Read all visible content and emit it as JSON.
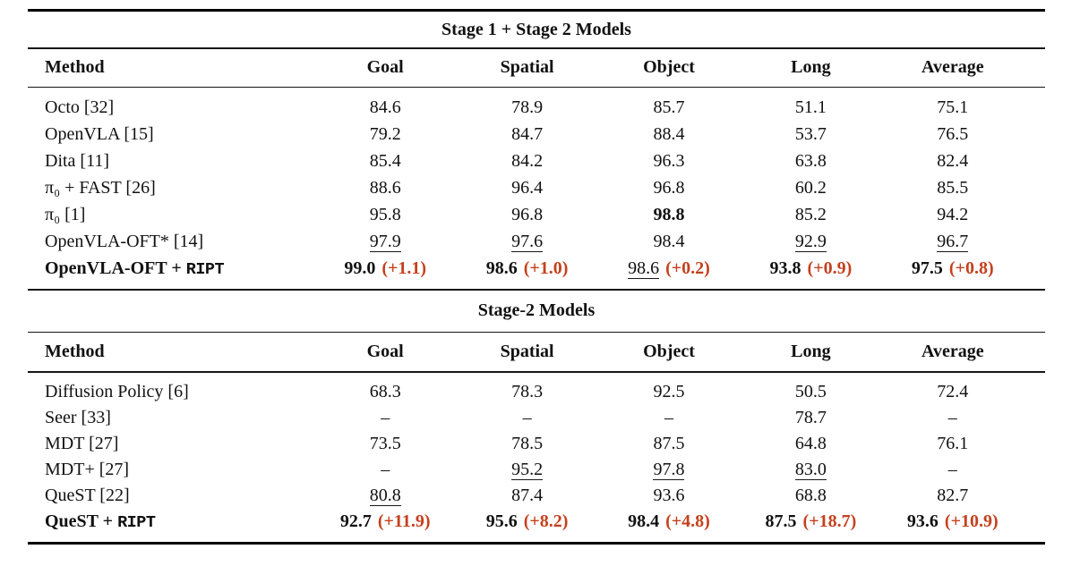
{
  "colors": {
    "accent_red": "#c5401d",
    "rule_color": "#161616"
  },
  "tables": [
    {
      "title": "Stage 1 + Stage 2 Models",
      "columns": [
        "Method",
        "Goal",
        "Spatial",
        "Object",
        "Long",
        "Average"
      ],
      "rows": [
        {
          "method": {
            "text": "Octo [32]"
          },
          "cells": [
            {
              "v": "84.6"
            },
            {
              "v": "78.9"
            },
            {
              "v": "85.7"
            },
            {
              "v": "51.1"
            },
            {
              "v": "75.1"
            }
          ]
        },
        {
          "method": {
            "text": "OpenVLA [15]"
          },
          "cells": [
            {
              "v": "79.2"
            },
            {
              "v": "84.7"
            },
            {
              "v": "88.4"
            },
            {
              "v": "53.7"
            },
            {
              "v": "76.5"
            }
          ]
        },
        {
          "method": {
            "text": "Dita [11]"
          },
          "cells": [
            {
              "v": "85.4"
            },
            {
              "v": "84.2"
            },
            {
              "v": "96.3"
            },
            {
              "v": "63.8"
            },
            {
              "v": "82.4"
            }
          ]
        },
        {
          "method": {
            "text": "π₀ + FAST [26]"
          },
          "cells": [
            {
              "v": "88.6"
            },
            {
              "v": "96.4"
            },
            {
              "v": "96.8"
            },
            {
              "v": "60.2"
            },
            {
              "v": "85.5"
            }
          ]
        },
        {
          "method": {
            "text": "π₀ [1]"
          },
          "cells": [
            {
              "v": "95.8"
            },
            {
              "v": "96.8"
            },
            {
              "v": "98.8",
              "bold": true
            },
            {
              "v": "85.2"
            },
            {
              "v": "94.2"
            }
          ]
        },
        {
          "method": {
            "text": "OpenVLA-OFT* [14]"
          },
          "cells": [
            {
              "v": "97.9",
              "underline": true
            },
            {
              "v": "97.6",
              "underline": true
            },
            {
              "v": "98.4"
            },
            {
              "v": "92.9",
              "underline": true
            },
            {
              "v": "96.7",
              "underline": true
            }
          ]
        },
        {
          "method": {
            "text": "OpenVLA-OFT + ",
            "tt": "RIPT",
            "bold": true
          },
          "cells": [
            {
              "v": "99.0",
              "bold": true,
              "delta": "(+1.1)"
            },
            {
              "v": "98.6",
              "bold": true,
              "delta": "(+1.0)"
            },
            {
              "v": "98.6",
              "underline": true,
              "delta": "(+0.2)"
            },
            {
              "v": "93.8",
              "bold": true,
              "delta": "(+0.9)"
            },
            {
              "v": "97.5",
              "bold": true,
              "delta": "(+0.8)"
            }
          ]
        }
      ]
    },
    {
      "title": "Stage-2 Models",
      "columns": [
        "Method",
        "Goal",
        "Spatial",
        "Object",
        "Long",
        "Average"
      ],
      "rows": [
        {
          "method": {
            "text": "Diffusion Policy [6]"
          },
          "cells": [
            {
              "v": "68.3"
            },
            {
              "v": "78.3"
            },
            {
              "v": "92.5"
            },
            {
              "v": "50.5"
            },
            {
              "v": "72.4"
            }
          ]
        },
        {
          "method": {
            "text": "Seer [33]"
          },
          "cells": [
            {
              "v": "–"
            },
            {
              "v": "–"
            },
            {
              "v": "–"
            },
            {
              "v": "78.7"
            },
            {
              "v": "–"
            }
          ]
        },
        {
          "method": {
            "text": "MDT [27]"
          },
          "cells": [
            {
              "v": "73.5"
            },
            {
              "v": "78.5"
            },
            {
              "v": "87.5"
            },
            {
              "v": "64.8"
            },
            {
              "v": "76.1"
            }
          ]
        },
        {
          "method": {
            "text": "MDT+ [27]"
          },
          "cells": [
            {
              "v": "–"
            },
            {
              "v": "95.2",
              "underline": true
            },
            {
              "v": "97.8",
              "underline": true
            },
            {
              "v": "83.0",
              "underline": true
            },
            {
              "v": "–"
            }
          ]
        },
        {
          "method": {
            "text": "QueST [22]"
          },
          "cells": [
            {
              "v": "80.8",
              "underline": true
            },
            {
              "v": "87.4"
            },
            {
              "v": "93.6"
            },
            {
              "v": "68.8"
            },
            {
              "v": "82.7"
            }
          ]
        },
        {
          "method": {
            "text": "QueST + ",
            "tt": "RIPT",
            "bold": true
          },
          "cells": [
            {
              "v": "92.7",
              "bold": true,
              "delta": "(+11.9)"
            },
            {
              "v": "95.6",
              "bold": true,
              "delta": "(+8.2)"
            },
            {
              "v": "98.4",
              "bold": true,
              "delta": "(+4.8)"
            },
            {
              "v": "87.5",
              "bold": true,
              "delta": "(+18.7)"
            },
            {
              "v": "93.6",
              "bold": true,
              "delta": "(+10.9)"
            }
          ]
        }
      ]
    }
  ]
}
